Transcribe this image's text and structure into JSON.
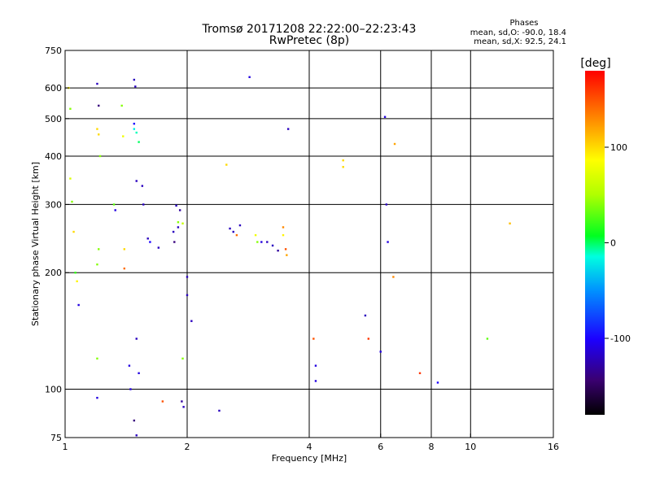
{
  "chart_data": {
    "type": "scatter",
    "title": "Tromsø 20171208 22:22:00–22:23:43",
    "subtitle": "RwPretec (8p)",
    "xlabel": "Frequency [MHz]",
    "ylabel": "Stationary phase Virtual Height [km]",
    "x_scale": "log",
    "y_scale": "log",
    "xlim": [
      1,
      16
    ],
    "ylim": [
      75,
      750
    ],
    "x_ticks": [
      1,
      2,
      4,
      6,
      8,
      10,
      16
    ],
    "y_ticks": [
      75,
      100,
      200,
      300,
      400,
      500,
      600,
      750
    ],
    "x_grid": [
      2,
      4,
      6,
      8,
      10
    ],
    "y_grid": [
      100,
      200,
      300,
      400,
      500,
      600
    ],
    "grid": true,
    "phase_stats": {
      "title": "Phases",
      "line_o": "mean, sd,O: -90.0, 18.4",
      "line_x": "mean, sd,X: 92.5, 24.1"
    },
    "colorbar": {
      "label": "[deg]",
      "range": [
        -180,
        180
      ],
      "ticks": [
        100,
        0,
        -100
      ],
      "colormap": "rainbow",
      "placement": "right"
    },
    "points": [
      [
        1.02,
        600,
        90
      ],
      [
        1.03,
        530,
        40
      ],
      [
        1.03,
        350,
        70
      ],
      [
        1.04,
        305,
        40
      ],
      [
        1.05,
        255,
        100
      ],
      [
        1.06,
        200,
        20
      ],
      [
        1.07,
        190,
        90
      ],
      [
        1.08,
        165,
        -110
      ],
      [
        1.2,
        615,
        -120
      ],
      [
        1.21,
        540,
        -140
      ],
      [
        1.2,
        470,
        100
      ],
      [
        1.21,
        455,
        100
      ],
      [
        1.22,
        400,
        40
      ],
      [
        1.21,
        230,
        40
      ],
      [
        1.2,
        210,
        40
      ],
      [
        1.2,
        120,
        40
      ],
      [
        1.2,
        95,
        -110
      ],
      [
        1.32,
        300,
        30
      ],
      [
        1.33,
        290,
        -110
      ],
      [
        1.38,
        540,
        40
      ],
      [
        1.39,
        450,
        80
      ],
      [
        1.4,
        230,
        100
      ],
      [
        1.4,
        205,
        140
      ],
      [
        1.44,
        115,
        -110
      ],
      [
        1.45,
        100,
        -110
      ],
      [
        1.48,
        630,
        -120
      ],
      [
        1.49,
        605,
        -120
      ],
      [
        1.48,
        485,
        -100
      ],
      [
        1.48,
        470,
        -20
      ],
      [
        1.5,
        460,
        -10
      ],
      [
        1.52,
        435,
        0
      ],
      [
        1.5,
        345,
        -120
      ],
      [
        1.55,
        335,
        -120
      ],
      [
        1.5,
        135,
        -120
      ],
      [
        1.48,
        83,
        -140
      ],
      [
        1.5,
        76,
        -120
      ],
      [
        1.52,
        110,
        -110
      ],
      [
        1.56,
        300,
        -120
      ],
      [
        1.6,
        245,
        -120
      ],
      [
        1.62,
        240,
        -100
      ],
      [
        1.7,
        232,
        -120
      ],
      [
        1.74,
        93,
        150
      ],
      [
        1.85,
        255,
        -120
      ],
      [
        1.86,
        240,
        -140
      ],
      [
        1.9,
        262,
        -120
      ],
      [
        1.88,
        298,
        -120
      ],
      [
        1.92,
        290,
        -130
      ],
      [
        1.9,
        270,
        40
      ],
      [
        1.95,
        268,
        60
      ],
      [
        1.94,
        93,
        -130
      ],
      [
        1.96,
        90,
        -120
      ],
      [
        2.0,
        195,
        -120
      ],
      [
        2.0,
        175,
        -120
      ],
      [
        2.05,
        150,
        -120
      ],
      [
        1.95,
        120,
        40
      ],
      [
        2.5,
        380,
        100
      ],
      [
        2.55,
        260,
        -120
      ],
      [
        2.6,
        255,
        -120
      ],
      [
        2.7,
        265,
        -120
      ],
      [
        2.65,
        250,
        140
      ],
      [
        2.4,
        88,
        -120
      ],
      [
        2.85,
        640,
        -110
      ],
      [
        2.95,
        250,
        80
      ],
      [
        2.98,
        240,
        40
      ],
      [
        3.05,
        240,
        -110
      ],
      [
        3.15,
        240,
        -120
      ],
      [
        3.25,
        235,
        -120
      ],
      [
        3.35,
        228,
        -130
      ],
      [
        3.45,
        262,
        130
      ],
      [
        3.45,
        250,
        90
      ],
      [
        3.5,
        230,
        150
      ],
      [
        3.52,
        222,
        120
      ],
      [
        3.55,
        470,
        -120
      ],
      [
        4.1,
        135,
        150
      ],
      [
        4.15,
        105,
        -110
      ],
      [
        4.15,
        115,
        -110
      ],
      [
        4.85,
        390,
        100
      ],
      [
        4.85,
        375,
        100
      ],
      [
        5.5,
        155,
        -120
      ],
      [
        5.6,
        135,
        160
      ],
      [
        6.0,
        125,
        -110
      ],
      [
        6.15,
        505,
        -110
      ],
      [
        6.2,
        300,
        -120
      ],
      [
        6.25,
        240,
        -110
      ],
      [
        6.45,
        195,
        130
      ],
      [
        6.5,
        430,
        120
      ],
      [
        7.5,
        110,
        160
      ],
      [
        8.3,
        104,
        -100
      ],
      [
        11.0,
        135,
        30
      ],
      [
        12.5,
        268,
        110
      ]
    ]
  }
}
